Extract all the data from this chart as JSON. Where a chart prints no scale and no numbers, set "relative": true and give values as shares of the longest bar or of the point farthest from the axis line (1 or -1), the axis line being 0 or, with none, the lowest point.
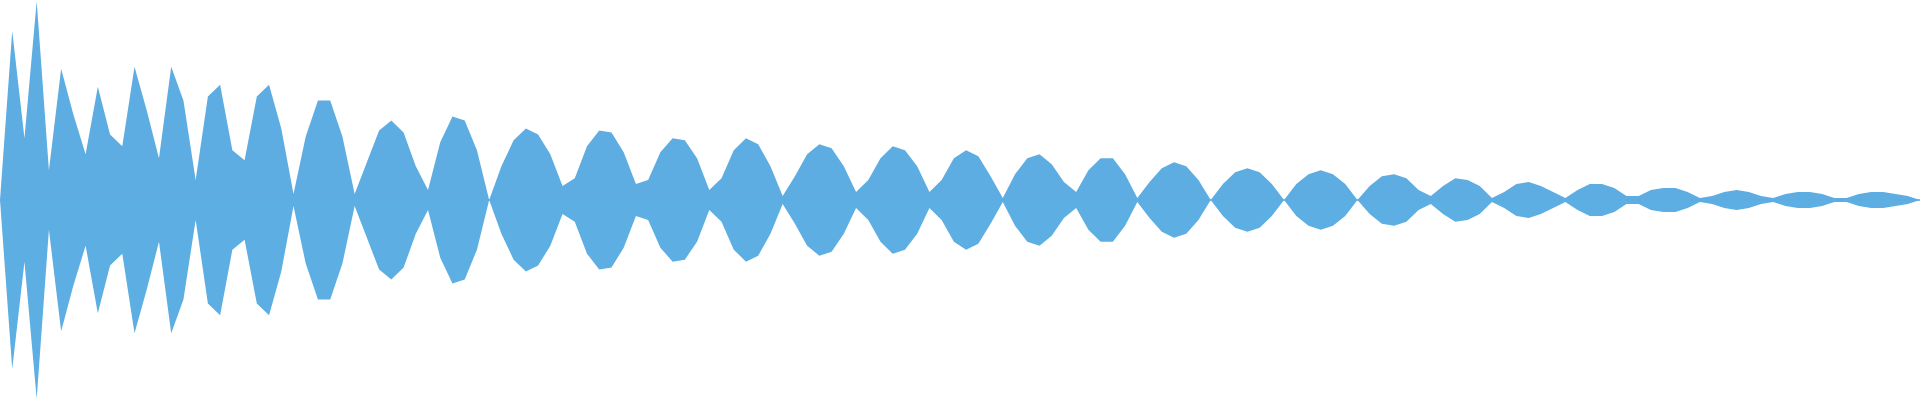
{
  "chart_data": {
    "type": "area",
    "relative": true,
    "tick_labels": false,
    "categories": [
      null,
      null,
      null,
      null,
      null,
      null,
      null,
      null,
      null,
      null,
      null,
      null,
      null,
      null,
      null,
      null,
      null,
      null,
      null,
      null,
      null,
      null,
      null,
      null,
      null,
      null,
      null,
      null,
      null,
      null,
      null,
      null,
      null,
      null,
      null,
      null,
      null,
      null,
      null,
      null,
      null,
      null,
      null,
      null,
      null,
      null,
      null,
      null,
      null,
      null,
      null,
      null,
      null,
      null,
      null,
      null,
      null,
      null,
      null,
      null,
      null,
      null,
      null,
      null,
      null,
      null,
      null,
      null,
      null,
      null,
      null,
      null,
      null,
      null,
      null,
      null,
      null,
      null,
      null,
      null,
      null,
      null,
      null,
      null,
      null,
      null,
      null,
      null,
      null,
      null,
      null,
      null,
      null,
      null,
      null,
      null,
      null,
      null,
      null,
      null,
      null,
      null,
      null,
      null,
      null,
      null,
      null,
      null,
      null,
      null,
      null,
      null,
      null,
      null,
      null,
      null,
      null,
      null,
      null,
      null,
      null,
      null,
      null,
      null,
      null,
      null,
      null,
      null,
      null,
      null,
      null,
      null,
      null,
      null,
      null,
      null,
      null,
      null,
      null,
      null,
      null,
      null,
      null,
      null,
      null,
      null,
      null,
      null,
      null,
      null,
      null,
      null,
      null,
      null,
      null,
      null,
      null,
      null
    ],
    "series": [
      {
        "color": "#5dade2",
        "values": [
          0,
          0.85,
          0.31,
          1,
          0.15,
          0.66,
          0.43,
          0.23,
          0.57,
          0.33,
          0.27,
          0.67,
          0.45,
          0.21,
          0.67,
          0.5,
          0.1,
          0.52,
          0.58,
          0.25,
          0.2,
          0.52,
          0.58,
          0.36,
          0.03,
          0.32,
          0.5,
          0.5,
          0.32,
          0.03,
          0.19,
          0.35,
          0.4,
          0.34,
          0.17,
          0.05,
          0.29,
          0.42,
          0.4,
          0.25,
          0,
          0.17,
          0.3,
          0.36,
          0.33,
          0.23,
          0.07,
          0.11,
          0.27,
          0.35,
          0.34,
          0.24,
          0.08,
          0.1,
          0.24,
          0.31,
          0.3,
          0.21,
          0.05,
          0.11,
          0.25,
          0.31,
          0.28,
          0.17,
          0.02,
          0.12,
          0.23,
          0.28,
          0.26,
          0.17,
          0.04,
          0.1,
          0.21,
          0.27,
          0.25,
          0.17,
          0.04,
          0.1,
          0.21,
          0.25,
          0.22,
          0.12,
          0.01,
          0.13,
          0.21,
          0.23,
          0.18,
          0.09,
          0.04,
          0.15,
          0.21,
          0.21,
          0.13,
          0.01,
          0.09,
          0.16,
          0.19,
          0.17,
          0.1,
          0,
          0.08,
          0.14,
          0.16,
          0.14,
          0.08,
          0,
          0.08,
          0.13,
          0.15,
          0.13,
          0.08,
          0,
          0.07,
          0.12,
          0.13,
          0.11,
          0.05,
          0.02,
          0.07,
          0.11,
          0.1,
          0.07,
          0.01,
          0.04,
          0.08,
          0.09,
          0.07,
          0.04,
          0.01,
          0.05,
          0.08,
          0.08,
          0.06,
          0.02,
          0.02,
          0.05,
          0.06,
          0.06,
          0.04,
          0.01,
          0.02,
          0.04,
          0.05,
          0.04,
          0.02,
          0.01,
          0.03,
          0.04,
          0.04,
          0.03,
          0.01,
          0.01,
          0.03,
          0.04,
          0.04,
          0.03,
          0.02,
          0
        ]
      },
      {
        "color": "#5daee2",
        "values": [
          0,
          -0.85,
          -0.31,
          -1,
          -0.15,
          -0.66,
          -0.43,
          -0.23,
          -0.57,
          -0.33,
          -0.27,
          -0.67,
          -0.45,
          -0.21,
          -0.67,
          -0.5,
          -0.1,
          -0.52,
          -0.58,
          -0.25,
          -0.2,
          -0.52,
          -0.58,
          -0.36,
          -0.03,
          -0.32,
          -0.5,
          -0.5,
          -0.32,
          -0.03,
          -0.19,
          -0.35,
          -0.4,
          -0.34,
          -0.17,
          -0.05,
          -0.29,
          -0.42,
          -0.4,
          -0.25,
          0,
          -0.17,
          -0.3,
          -0.36,
          -0.33,
          -0.23,
          -0.07,
          -0.11,
          -0.27,
          -0.35,
          -0.34,
          -0.24,
          -0.08,
          -0.1,
          -0.24,
          -0.31,
          -0.3,
          -0.21,
          -0.05,
          -0.11,
          -0.25,
          -0.31,
          -0.28,
          -0.17,
          -0.02,
          -0.12,
          -0.23,
          -0.28,
          -0.26,
          -0.17,
          -0.04,
          -0.1,
          -0.21,
          -0.27,
          -0.25,
          -0.17,
          -0.04,
          -0.1,
          -0.21,
          -0.25,
          -0.22,
          -0.12,
          -0.01,
          -0.13,
          -0.21,
          -0.23,
          -0.18,
          -0.09,
          -0.04,
          -0.15,
          -0.21,
          -0.21,
          -0.13,
          -0.01,
          -0.09,
          -0.16,
          -0.19,
          -0.17,
          -0.1,
          0,
          -0.08,
          -0.14,
          -0.16,
          -0.14,
          -0.08,
          0,
          -0.08,
          -0.13,
          -0.15,
          -0.13,
          -0.08,
          0,
          -0.07,
          -0.12,
          -0.13,
          -0.11,
          -0.05,
          -0.02,
          -0.07,
          -0.11,
          -0.1,
          -0.07,
          -0.01,
          -0.04,
          -0.08,
          -0.09,
          -0.07,
          -0.04,
          -0.01,
          -0.05,
          -0.08,
          -0.08,
          -0.06,
          -0.02,
          -0.02,
          -0.05,
          -0.06,
          -0.06,
          -0.04,
          -0.01,
          -0.02,
          -0.04,
          -0.05,
          -0.04,
          -0.02,
          -0.01,
          -0.03,
          -0.04,
          -0.04,
          -0.03,
          -0.01,
          -0.01,
          -0.03,
          -0.04,
          -0.04,
          -0.03,
          -0.02,
          0
        ]
      }
    ]
  }
}
